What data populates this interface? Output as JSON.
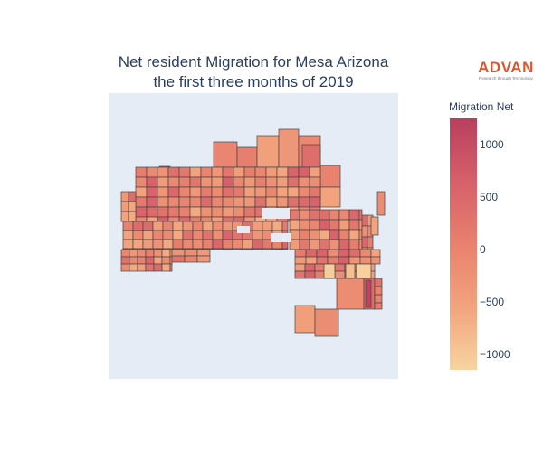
{
  "title_line1": "Net resident Migration for Mesa Arizona",
  "title_line2": "the first three months of 2019",
  "brand": {
    "name": "ADVAN",
    "tagline": "Research through Technology",
    "color": "#e2542b"
  },
  "colorbar": {
    "title": "Migration Net",
    "min": -1150,
    "max": 1250,
    "ticks": [
      {
        "value": 1000,
        "label": "1000"
      },
      {
        "value": 500,
        "label": "500"
      },
      {
        "value": 0,
        "label": "0"
      },
      {
        "value": -500,
        "label": "−500"
      },
      {
        "value": -1000,
        "label": "−1000"
      }
    ],
    "colorscale": [
      "#f7d4a0",
      "#f2a37d",
      "#e8816e",
      "#d6606a",
      "#b83f5e"
    ]
  },
  "map": {
    "background": "#e5ecf6",
    "border_color": "#444444"
  }
}
